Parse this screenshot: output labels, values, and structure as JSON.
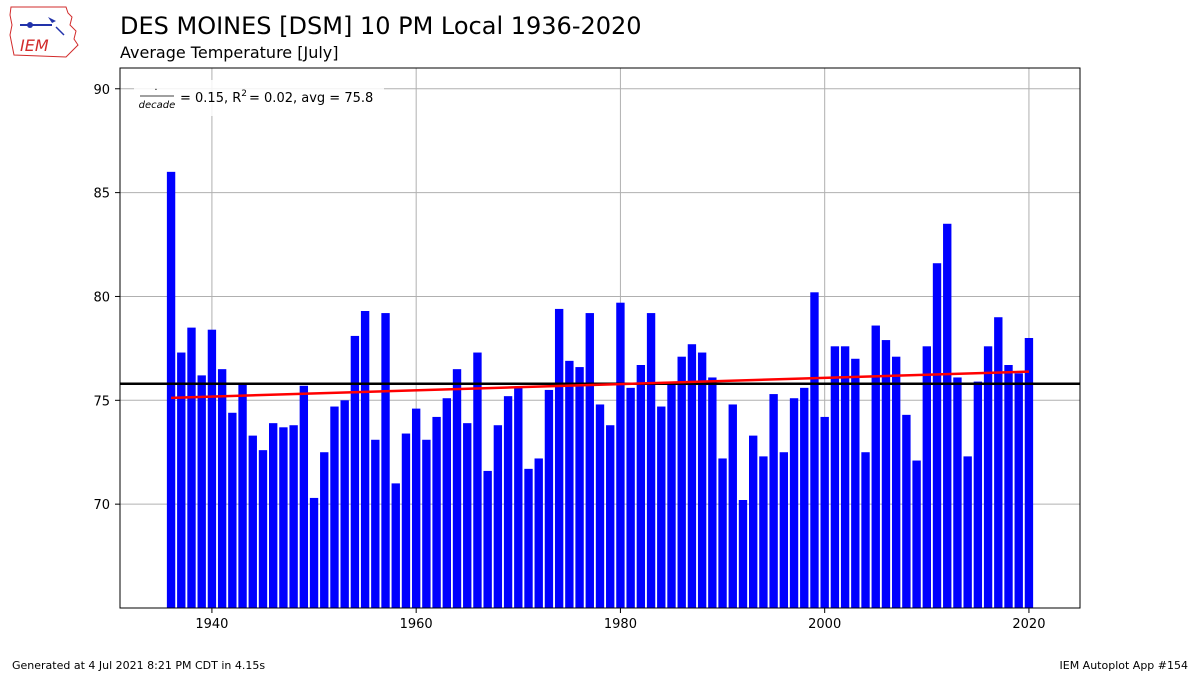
{
  "header": {
    "title": "DES MOINES [DSM] 10 PM Local 1936-2020",
    "subtitle": "Average Temperature [July]"
  },
  "logo": {
    "text": "IEM",
    "color": "#d22b2b"
  },
  "footer": {
    "generated": "Generated at 4 Jul 2021 8:21 PM CDT in 4.15s",
    "app": "IEM Autoplot App #154"
  },
  "chart_data": {
    "type": "bar",
    "x": [
      1936,
      1937,
      1938,
      1939,
      1940,
      1941,
      1942,
      1943,
      1944,
      1945,
      1946,
      1947,
      1948,
      1949,
      1950,
      1951,
      1952,
      1953,
      1954,
      1955,
      1956,
      1957,
      1958,
      1959,
      1960,
      1961,
      1962,
      1963,
      1964,
      1965,
      1966,
      1967,
      1968,
      1969,
      1970,
      1971,
      1972,
      1973,
      1974,
      1975,
      1976,
      1977,
      1978,
      1979,
      1980,
      1981,
      1982,
      1983,
      1984,
      1985,
      1986,
      1987,
      1988,
      1989,
      1990,
      1991,
      1992,
      1993,
      1994,
      1995,
      1996,
      1997,
      1998,
      1999,
      2000,
      2001,
      2002,
      2003,
      2004,
      2005,
      2006,
      2007,
      2008,
      2009,
      2010,
      2011,
      2012,
      2013,
      2014,
      2015,
      2016,
      2017,
      2018,
      2019,
      2020
    ],
    "values": [
      86.0,
      77.3,
      78.5,
      76.2,
      78.4,
      76.5,
      74.4,
      75.8,
      73.3,
      72.6,
      73.9,
      73.7,
      73.8,
      75.7,
      70.3,
      72.5,
      74.7,
      75.0,
      78.1,
      79.3,
      73.1,
      79.2,
      71.0,
      73.4,
      74.6,
      73.1,
      74.2,
      75.1,
      76.5,
      73.9,
      77.3,
      71.6,
      73.8,
      75.2,
      75.6,
      71.7,
      72.2,
      75.5,
      79.4,
      76.9,
      76.6,
      79.2,
      74.8,
      73.8,
      79.7,
      75.6,
      76.7,
      79.2,
      74.7,
      75.9,
      77.1,
      77.7,
      77.3,
      76.1,
      72.2,
      74.8,
      70.2,
      73.3,
      72.3,
      75.3,
      72.5,
      75.1,
      75.6,
      80.2,
      74.2,
      77.6,
      77.6,
      77.0,
      72.5,
      78.6,
      77.9,
      77.1,
      74.3,
      72.1,
      77.6,
      81.6,
      83.5,
      76.1,
      72.3,
      75.9,
      77.6,
      79.0,
      76.7,
      76.3,
      78.0
    ],
    "bar_color": "#0000ff",
    "avg": 75.8,
    "avg_line_color": "#000000",
    "trend": {
      "start": [
        1936,
        75.12
      ],
      "end": [
        2020,
        76.38
      ],
      "color": "#ff0000"
    },
    "legend_text": "$\\frac{\\cdot}{decade} = 0.15, R^2=0.02, avg=75.8$",
    "legend_parts": {
      "num": "·",
      "den": "decade",
      "eq": "= 0.15, R",
      "sup": "2",
      "rest": "= 0.02, avg = 75.8"
    },
    "legend_position": "top-left",
    "xlim": [
      1931,
      2025
    ],
    "ylim": [
      65,
      91
    ],
    "xticks": [
      1940,
      1960,
      1980,
      2000,
      2020
    ],
    "yticks": [
      70,
      75,
      80,
      85,
      90
    ],
    "grid": true
  }
}
